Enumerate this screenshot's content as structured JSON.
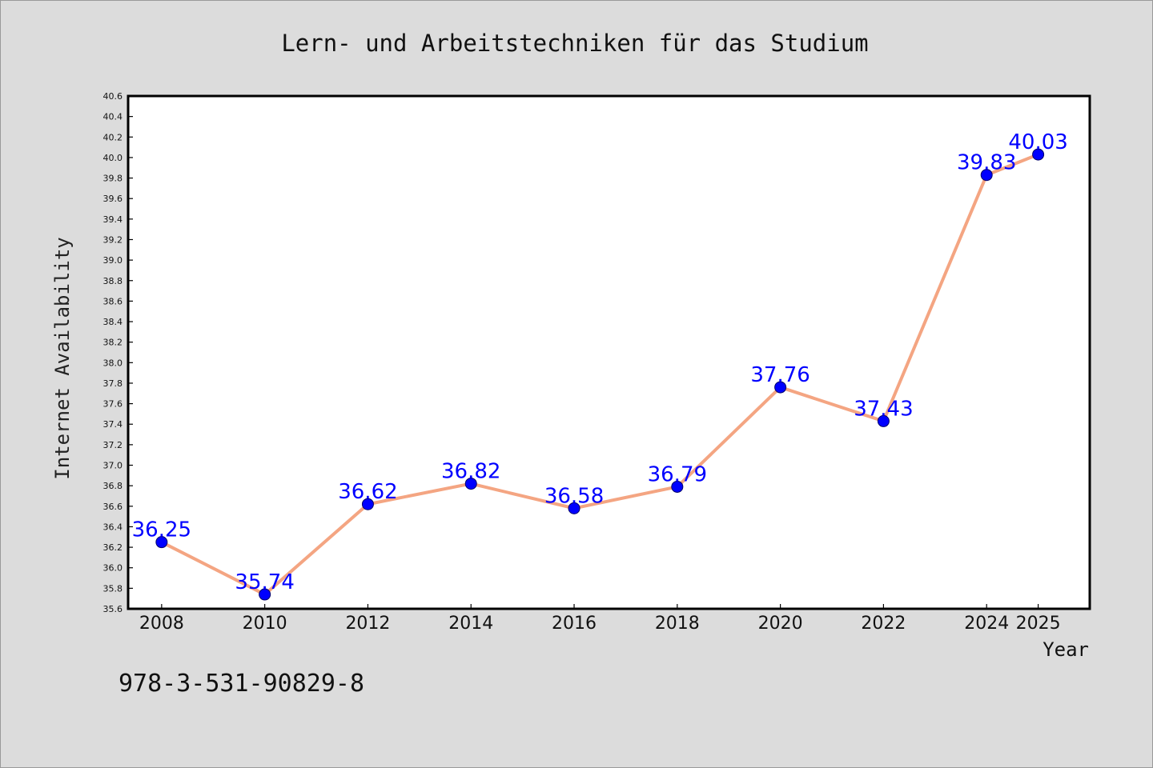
{
  "chart_data": {
    "type": "line",
    "title": "Lern- und Arbeitstechniken für das Studium",
    "xlabel": "Year",
    "ylabel": "Internet Availability",
    "x": [
      2008,
      2010,
      2012,
      2014,
      2016,
      2018,
      2020,
      2022,
      2024,
      2025
    ],
    "x_tick_labels": [
      "2008",
      "2010",
      "2012",
      "2014",
      "2016",
      "2018",
      "2020",
      "2022",
      "2024",
      "2025"
    ],
    "series": [
      {
        "values": [
          36.25,
          35.74,
          36.62,
          36.82,
          36.58,
          36.79,
          37.76,
          37.43,
          39.83,
          40.03
        ],
        "data_labels": [
          "36.25",
          "35.74",
          "36.62",
          "36.82",
          "36.58",
          "36.79",
          "37.76",
          "37.43",
          "39.83",
          "40.03"
        ]
      }
    ],
    "ylim": [
      35.6,
      40.6
    ],
    "y_ticks": [
      "35.6",
      "35.8",
      "36.0",
      "36.2",
      "36.4",
      "36.6",
      "36.8",
      "37.0",
      "37.2",
      "37.4",
      "37.6",
      "37.8",
      "38.0",
      "38.2",
      "38.4",
      "38.6",
      "38.8",
      "39.0",
      "39.2",
      "39.4",
      "39.6",
      "39.8",
      "40.0",
      "40.2",
      "40.4",
      "40.6"
    ],
    "y_tick_values": [
      35.6,
      35.8,
      36.0,
      36.2,
      36.4,
      36.6,
      36.8,
      37.0,
      37.2,
      37.4,
      37.6,
      37.8,
      38.0,
      38.2,
      38.4,
      38.6,
      38.8,
      39.0,
      39.2,
      39.4,
      39.6,
      39.8,
      40.0,
      40.2,
      40.4,
      40.6
    ],
    "grid": false,
    "legend": "none",
    "colors": {
      "line": "#f4a582",
      "marker": "#0000ff",
      "data_label": "#0000ff",
      "background": "#dcdcdc",
      "plot_background": "#ffffff"
    }
  },
  "footer": {
    "isbn": "978-3-531-90829-8"
  }
}
